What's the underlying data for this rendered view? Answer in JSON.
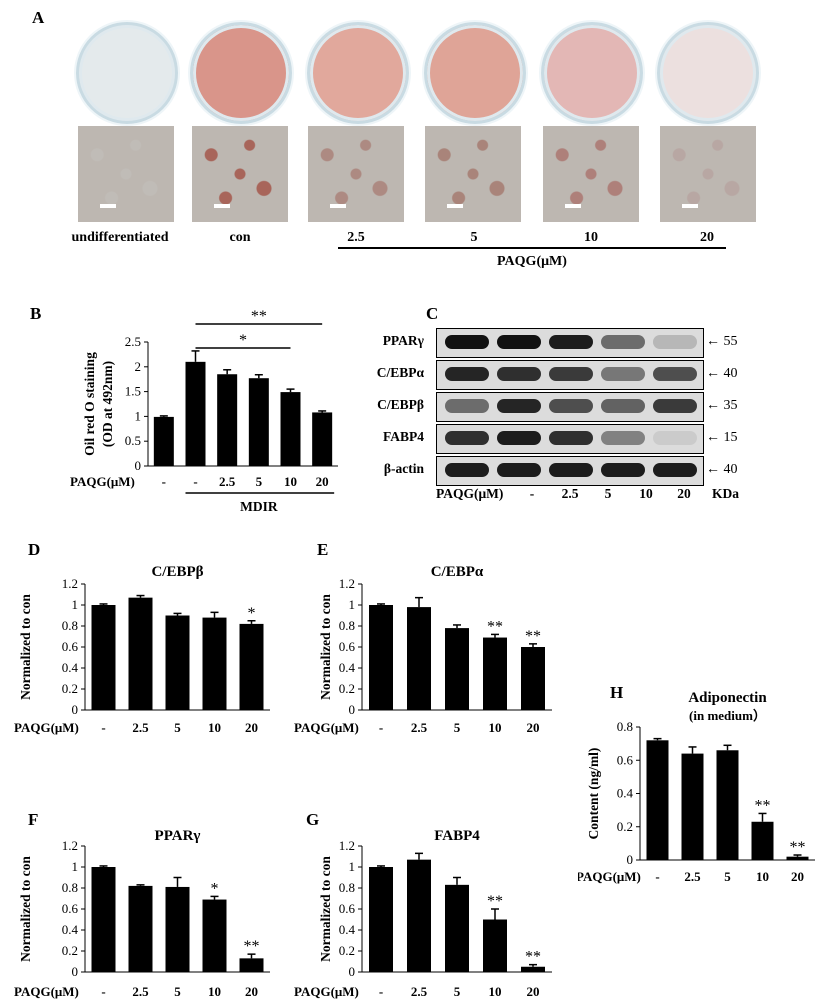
{
  "panel_labels": {
    "A": "A",
    "B": "B",
    "C": "C",
    "D": "D",
    "E": "E",
    "F": "F",
    "G": "G",
    "H": "H"
  },
  "panel_a": {
    "conditions": [
      "undifferentiated",
      "con",
      "2.5",
      "5",
      "10",
      "20"
    ],
    "group_label": "PAQG(μM)",
    "dish_colors": [
      "#e4eaec",
      "#d9958a",
      "#e1a89c",
      "#dfa497",
      "#e3b7b5",
      "#ece0df"
    ],
    "micro_colors": [
      "#c0bcb7",
      "#a8655a",
      "#ad8a82",
      "#a9847a",
      "#ae807a",
      "#b8a7a3"
    ]
  },
  "panel_c": {
    "rows": [
      {
        "label": "PPARγ",
        "mw": "55",
        "intensity": [
          1,
          1,
          0.95,
          0.55,
          0.18
        ]
      },
      {
        "label": "C/EBPα",
        "mw": "40",
        "intensity": [
          0.9,
          0.85,
          0.8,
          0.5,
          0.7
        ]
      },
      {
        "label": "C/EBPβ",
        "mw": "35",
        "intensity": [
          0.55,
          0.9,
          0.7,
          0.6,
          0.8
        ]
      },
      {
        "label": "FABP4",
        "mw": "15",
        "intensity": [
          0.85,
          0.95,
          0.85,
          0.45,
          0.08
        ]
      },
      {
        "label": "β-actin",
        "mw": "40",
        "intensity": [
          0.95,
          0.95,
          0.95,
          0.95,
          0.95
        ]
      }
    ],
    "lanes": [
      "-",
      "2.5",
      "5",
      "10",
      "20"
    ],
    "x_prefix": "PAQG(μM)",
    "unit_label": "KDa"
  },
  "chart_data": [
    {
      "id": "B",
      "type": "bar",
      "categories": [
        "-",
        "-",
        "2.5",
        "5",
        "10",
        "20"
      ],
      "values": [
        0.99,
        2.1,
        1.85,
        1.77,
        1.49,
        1.08
      ],
      "errors": [
        0.02,
        0.22,
        0.09,
        0.07,
        0.06,
        0.03
      ],
      "ylabel": "Oil red O staining (OD at 492nm)",
      "ylim": [
        0,
        2.5
      ],
      "yticks": [
        "0",
        "0.5",
        "1",
        "1.5",
        "2",
        "2.5"
      ],
      "x_prefix": "PAQG(μM)",
      "group_label": "MDIR",
      "sig_lines": [
        {
          "label": "**",
          "from": 1,
          "to": 5
        },
        {
          "label": "*",
          "from": 1,
          "to": 4
        }
      ]
    },
    {
      "id": "D",
      "type": "bar",
      "title": "C/EBPβ",
      "categories": [
        "-",
        "2.5",
        "5",
        "10",
        "20"
      ],
      "values": [
        1.0,
        1.07,
        0.9,
        0.88,
        0.82
      ],
      "errors": [
        0.01,
        0.02,
        0.02,
        0.05,
        0.03
      ],
      "stars": [
        "",
        "",
        "",
        "",
        "*"
      ],
      "ylabel": "Normalized to con",
      "ylim": [
        0,
        1.2
      ],
      "yticks": [
        "0",
        "0.2",
        "0.4",
        "0.6",
        "0.8",
        "1",
        "1.2"
      ],
      "x_prefix": "PAQG(μM)"
    },
    {
      "id": "E",
      "type": "bar",
      "title": "C/EBPα",
      "categories": [
        "-",
        "2.5",
        "5",
        "10",
        "20"
      ],
      "values": [
        1.0,
        0.98,
        0.78,
        0.69,
        0.6
      ],
      "errors": [
        0.01,
        0.09,
        0.03,
        0.03,
        0.03
      ],
      "stars": [
        "",
        "",
        "",
        "**",
        "**"
      ],
      "ylabel": "Normalized to con",
      "ylim": [
        0,
        1.2
      ],
      "yticks": [
        "0",
        "0.2",
        "0.4",
        "0.6",
        "0.8",
        "1",
        "1.2"
      ],
      "x_prefix": "PAQG(μM)"
    },
    {
      "id": "F",
      "type": "bar",
      "title": "PPARγ",
      "categories": [
        "-",
        "2.5",
        "5",
        "10",
        "20"
      ],
      "values": [
        1.0,
        0.82,
        0.81,
        0.69,
        0.13
      ],
      "errors": [
        0.01,
        0.01,
        0.09,
        0.03,
        0.04
      ],
      "stars": [
        "",
        "",
        "",
        "*",
        "**"
      ],
      "ylabel": "Normalized to con",
      "ylim": [
        0,
        1.2
      ],
      "yticks": [
        "0",
        "0.2",
        "0.4",
        "0.6",
        "0.8",
        "1",
        "1.2"
      ],
      "x_prefix": "PAQG(μM)"
    },
    {
      "id": "G",
      "type": "bar",
      "title": "FABP4",
      "categories": [
        "-",
        "2.5",
        "5",
        "10",
        "20"
      ],
      "values": [
        1.0,
        1.07,
        0.83,
        0.5,
        0.05
      ],
      "errors": [
        0.01,
        0.06,
        0.07,
        0.1,
        0.02
      ],
      "stars": [
        "",
        "",
        "",
        "**",
        "**"
      ],
      "ylabel": "Normalized to con",
      "ylim": [
        0,
        1.2
      ],
      "yticks": [
        "0",
        "0.2",
        "0.4",
        "0.6",
        "0.8",
        "1",
        "1.2"
      ],
      "x_prefix": "PAQG(μM)"
    },
    {
      "id": "H",
      "type": "bar",
      "title": "Adiponectin",
      "subtitle": "(in medium）",
      "categories": [
        "-",
        "2.5",
        "5",
        "10",
        "20"
      ],
      "values": [
        0.72,
        0.64,
        0.66,
        0.23,
        0.02
      ],
      "errors": [
        0.01,
        0.04,
        0.03,
        0.05,
        0.01
      ],
      "stars": [
        "",
        "",
        "",
        "**",
        "**"
      ],
      "ylabel": "Content (ng/ml)",
      "ylim": [
        0,
        0.8
      ],
      "yticks": [
        "0",
        "0.2",
        "0.4",
        "0.6",
        "0.8"
      ],
      "x_prefix": "PAQG(μM)"
    }
  ]
}
